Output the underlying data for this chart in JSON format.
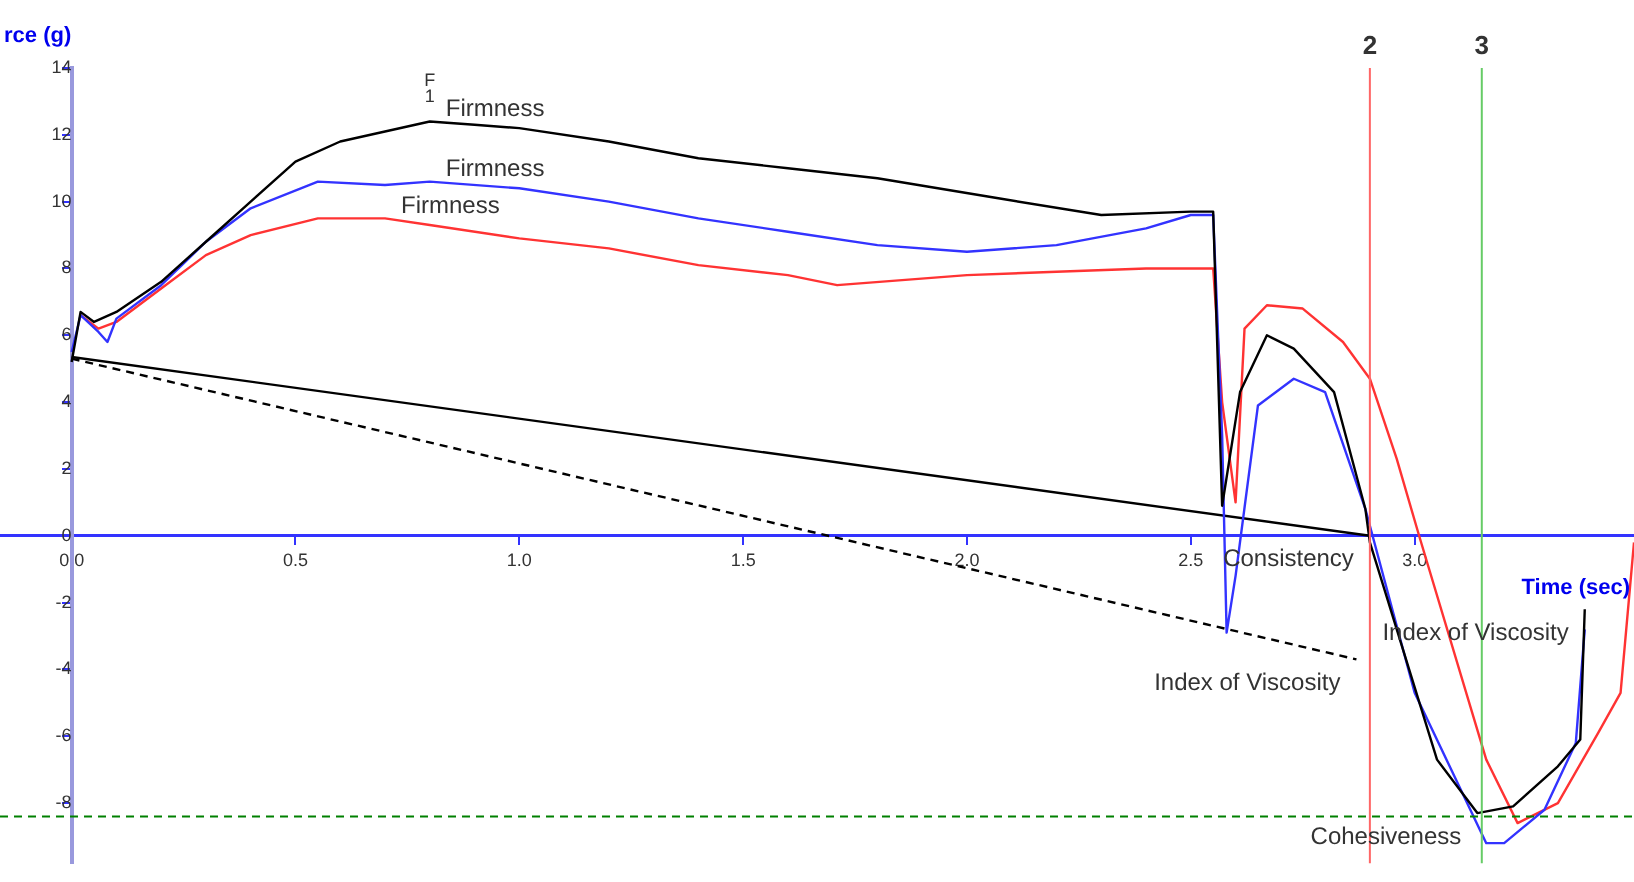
{
  "chart_data": {
    "type": "line",
    "ylabel": "rce (g)",
    "xlabel": "Time (sec)",
    "xlim": [
      -0.16,
      3.49
    ],
    "ylim": [
      -9.8,
      14
    ],
    "xticks": [
      {
        "value": 0,
        "label": "0.0"
      },
      {
        "value": 0.5,
        "label": "0.5"
      },
      {
        "value": 1,
        "label": "1.0"
      },
      {
        "value": 1.5,
        "label": "1.5"
      },
      {
        "value": 2,
        "label": "2.0"
      },
      {
        "value": 2.5,
        "label": "2.5"
      },
      {
        "value": 3,
        "label": "3.0"
      }
    ],
    "yticks": [
      -8,
      -6,
      -4,
      -2,
      0,
      2,
      4,
      6,
      8,
      10,
      12,
      14
    ],
    "grid": false,
    "legend": false,
    "marker": "none",
    "series": [
      {
        "color": "#000000",
        "x": [
          0,
          0.02,
          0.05,
          0.1,
          0.2,
          0.3,
          0.4,
          0.5,
          0.6,
          0.7,
          0.8,
          0.9,
          1.0,
          1.2,
          1.4,
          1.6,
          1.8,
          2.07,
          2.3,
          2.5,
          2.55,
          2.57,
          2.61,
          2.67,
          2.73,
          2.82,
          2.89,
          2.9,
          3.05,
          3.14,
          3.22,
          3.32,
          3.37,
          3.38
        ],
        "values": [
          5.2,
          6.7,
          6.4,
          6.7,
          7.6,
          8.8,
          10.0,
          11.2,
          11.8,
          12.1,
          12.4,
          12.3,
          12.2,
          11.8,
          11.3,
          11.0,
          10.7,
          10.1,
          9.6,
          9.7,
          9.7,
          0.9,
          4.3,
          6.0,
          5.6,
          4.3,
          0.8,
          -0.2,
          -6.7,
          -8.3,
          -8.1,
          -6.9,
          -6.1,
          -2.2
        ]
      },
      {
        "color": "#3333ff",
        "x": [
          0,
          0.02,
          0.06,
          0.08,
          0.1,
          0.2,
          0.3,
          0.4,
          0.55,
          0.7,
          0.8,
          1.0,
          1.2,
          1.4,
          1.6,
          1.8,
          2.0,
          2.2,
          2.4,
          2.5,
          2.55,
          2.57,
          2.58,
          2.6,
          2.65,
          2.73,
          2.8,
          2.89,
          3.0,
          3.16,
          3.2,
          3.29,
          3.36,
          3.38
        ],
        "values": [
          5.5,
          6.6,
          6.1,
          5.8,
          6.5,
          7.5,
          8.8,
          9.8,
          10.6,
          10.5,
          10.6,
          10.4,
          10.0,
          9.5,
          9.1,
          8.7,
          8.5,
          8.7,
          9.2,
          9.6,
          9.6,
          3.0,
          -2.9,
          -1.2,
          3.9,
          4.7,
          4.3,
          0.8,
          -4.7,
          -9.2,
          -9.2,
          -8.2,
          -6.2,
          -2.8
        ]
      },
      {
        "color": "#ff3333",
        "x": [
          0.02,
          0.06,
          0.1,
          0.2,
          0.3,
          0.4,
          0.55,
          0.7,
          0.8,
          1.0,
          1.2,
          1.4,
          1.6,
          1.71,
          2.0,
          2.2,
          2.4,
          2.55,
          2.57,
          2.6,
          2.62,
          2.67,
          2.75,
          2.84,
          2.9,
          2.96,
          3.01,
          3.16,
          3.23,
          3.32,
          3.41,
          3.46,
          3.49
        ],
        "values": [
          6.6,
          6.2,
          6.4,
          7.4,
          8.4,
          9.0,
          9.5,
          9.5,
          9.3,
          8.9,
          8.6,
          8.1,
          7.8,
          7.5,
          7.8,
          7.9,
          8.0,
          8.0,
          4.0,
          1.0,
          6.2,
          6.9,
          6.8,
          5.8,
          4.7,
          2.3,
          0,
          -6.7,
          -8.6,
          -8.0,
          -5.9,
          -4.7,
          -0.2
        ]
      },
      {
        "color": "#000000",
        "x": [
          0,
          2.9
        ],
        "values": [
          5.35,
          0
        ]
      },
      {
        "color": "#000000",
        "line_style": "dashed",
        "x": [
          0,
          2.87
        ],
        "values": [
          5.3,
          -3.7
        ]
      }
    ],
    "ref_lines": [
      {
        "axis": "x",
        "value": 2.9,
        "color": "#ff6666"
      },
      {
        "axis": "x",
        "value": 3.15,
        "color": "#66cc66"
      },
      {
        "axis": "y",
        "value": -8.4,
        "color": "#008000",
        "line_style": "dashed"
      }
    ],
    "annotations": [
      "F",
      "1",
      "2",
      "3",
      {
        "text": "Firmness",
        "x": 0.8,
        "y": 12.4
      },
      {
        "text": "Firmness",
        "x": 0.8,
        "y": 10.6
      },
      {
        "text": "Firmness",
        "x": 0.7,
        "y": 9.5
      },
      {
        "text": "Consistency",
        "x": 2.9,
        "y": 0
      },
      {
        "text": "Index of Viscosity",
        "x": 2.87,
        "y": -3.7
      },
      {
        "text": "Index of Viscosity",
        "x": 3.38,
        "y": -2.2
      },
      {
        "text": "Cohesiveness",
        "x": 3.14,
        "y": -8.3
      }
    ]
  }
}
